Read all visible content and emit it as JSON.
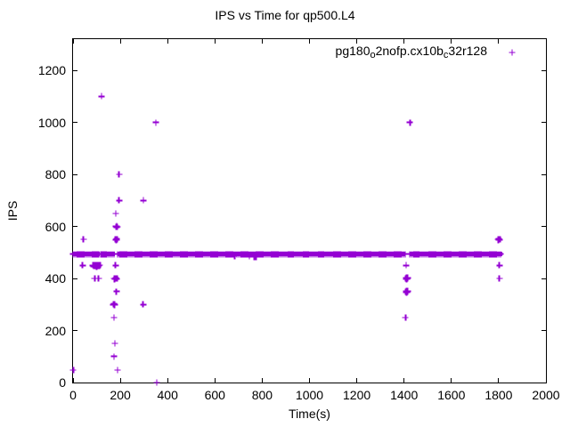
{
  "legend": {
    "parts": [
      {
        "text": "pg180",
        "sub": false
      },
      {
        "text": "o",
        "sub": true
      },
      {
        "text": "2nofp.cx10b",
        "sub": false
      },
      {
        "text": "c",
        "sub": true
      },
      {
        "text": "32r128",
        "sub": false
      }
    ],
    "series_plain": "pg180_o2nofp.cx10b_c32r128",
    "marker": "plus",
    "position": "top-right-inside"
  },
  "chart_data": {
    "type": "scatter",
    "title": "IPS vs Time for qp500.L4",
    "xlabel": "Time(s)",
    "ylabel": "IPS",
    "xlim": [
      0,
      2000
    ],
    "ylim": [
      0,
      1320
    ],
    "x_ticks": [
      0,
      200,
      400,
      600,
      800,
      1000,
      1200,
      1400,
      1600,
      1800,
      2000
    ],
    "y_ticks": [
      0,
      200,
      400,
      600,
      800,
      1000,
      1200
    ],
    "grid": false,
    "marker": "plus",
    "marker_color": "#9400D3",
    "series": [
      {
        "name": "pg180_o2nofp.cx10b_c32r128",
        "band": {
          "ips_center": 494,
          "ips_halfwidth": 10,
          "time_segments": [
            [
              0,
              104
            ],
            [
              108,
              114
            ],
            [
              118,
              176
            ],
            [
              189,
              1405
            ],
            [
              1424,
              1815
            ]
          ]
        },
        "points": [
          [
            120,
            1100
          ],
          [
            351,
            1000
          ],
          [
            1425,
            1000
          ],
          [
            195,
            800
          ],
          [
            195,
            700
          ],
          [
            297,
            700
          ],
          [
            181,
            650
          ],
          [
            181,
            600
          ],
          [
            183,
            597
          ],
          [
            185,
            602
          ],
          [
            187,
            599
          ],
          [
            44,
            550
          ],
          [
            180,
            550
          ],
          [
            182,
            547
          ],
          [
            184,
            552
          ],
          [
            186,
            549
          ],
          [
            183,
            551
          ],
          [
            1797,
            550
          ],
          [
            1799,
            547
          ],
          [
            1801,
            552
          ],
          [
            1803,
            549
          ],
          [
            1805,
            551
          ],
          [
            40,
            450
          ],
          [
            84,
            450
          ],
          [
            87,
            447
          ],
          [
            90,
            452
          ],
          [
            93,
            448
          ],
          [
            96,
            451
          ],
          [
            99,
            446
          ],
          [
            102,
            450
          ],
          [
            105,
            448
          ],
          [
            108,
            452
          ],
          [
            111,
            449
          ],
          [
            114,
            451
          ],
          [
            180,
            450
          ],
          [
            1409,
            450
          ],
          [
            1803,
            450
          ],
          [
            92,
            400
          ],
          [
            108,
            400
          ],
          [
            173,
            400
          ],
          [
            176,
            398
          ],
          [
            179,
            401
          ],
          [
            183,
            399
          ],
          [
            186,
            400
          ],
          [
            1407,
            400
          ],
          [
            1409,
            397
          ],
          [
            1411,
            403
          ],
          [
            1413,
            399
          ],
          [
            1415,
            401
          ],
          [
            1410,
            401
          ],
          [
            1412,
            397
          ],
          [
            1414,
            403
          ],
          [
            1416,
            400
          ],
          [
            1803,
            400
          ],
          [
            183,
            350
          ],
          [
            1407,
            349
          ],
          [
            1409,
            346
          ],
          [
            1411,
            352
          ],
          [
            1413,
            348
          ],
          [
            1415,
            350
          ],
          [
            1410,
            351
          ],
          [
            1412,
            346
          ],
          [
            1414,
            352
          ],
          [
            171,
            300
          ],
          [
            173,
            297
          ],
          [
            175,
            302
          ],
          [
            176,
            299
          ],
          [
            296,
            300
          ],
          [
            174,
            250
          ],
          [
            1406,
            250
          ],
          [
            177,
            150
          ],
          [
            174,
            100
          ],
          [
            1,
            48
          ],
          [
            189,
            48
          ],
          [
            354,
            0
          ],
          [
            683,
            487
          ],
          [
            746,
            487
          ],
          [
            766,
            483
          ],
          [
            773,
            483
          ]
        ]
      }
    ]
  }
}
